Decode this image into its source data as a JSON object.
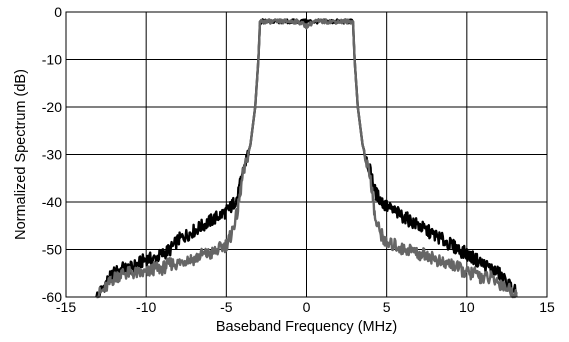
{
  "chart_data": {
    "type": "line",
    "title": "",
    "xlabel": "Baseband Frequency (MHz)",
    "ylabel": "Normalized Spectrum (dB)",
    "xlim": [
      -15,
      15
    ],
    "ylim": [
      -60,
      0
    ],
    "xticks": [
      -15,
      -10,
      -5,
      0,
      5,
      10,
      15
    ],
    "yticks": [
      0,
      -10,
      -20,
      -30,
      -40,
      -50,
      -60
    ],
    "xtick_labels": [
      "-15",
      "-10",
      "-5",
      "0",
      "5",
      "10",
      "15"
    ],
    "ytick_labels": [
      "0",
      "-10",
      "-20",
      "-30",
      "-40",
      "-50",
      "-60"
    ],
    "grid": true,
    "legend": "none",
    "series": [
      {
        "color": "#000000",
        "x": [
          -13.1,
          -12.5,
          -12.0,
          -11.5,
          -11.0,
          -10.5,
          -10.0,
          -9.5,
          -9.0,
          -8.5,
          -8.0,
          -7.5,
          -7.0,
          -6.5,
          -6.0,
          -5.5,
          -5.0,
          -4.7,
          -4.3,
          -4.0,
          -3.5,
          -3.2,
          -3.0,
          -2.9,
          -2.5,
          -2.0,
          -1.5,
          -1.0,
          -0.5,
          0.0,
          0.5,
          1.0,
          1.5,
          2.0,
          2.5,
          2.9,
          3.0,
          3.2,
          3.5,
          4.0,
          4.3,
          4.7,
          5.0,
          5.5,
          6.0,
          6.5,
          7.0,
          7.5,
          8.0,
          8.5,
          9.0,
          9.5,
          10.0,
          10.5,
          11.0,
          11.5,
          12.0,
          12.5,
          13.1
        ],
        "y": [
          -60,
          -57,
          -55,
          -54,
          -54,
          -53,
          -52,
          -52,
          -51,
          -50,
          -48,
          -47,
          -46,
          -45,
          -44,
          -43,
          -42,
          -41,
          -39,
          -34,
          -28,
          -20,
          -10,
          -2,
          -2,
          -2,
          -2,
          -2,
          -2,
          -2,
          -2,
          -2,
          -2,
          -2,
          -2,
          -2,
          -10,
          -20,
          -28,
          -34,
          -38,
          -40,
          -41,
          -42,
          -43,
          -44,
          -45,
          -46,
          -47,
          -48,
          -49,
          -50,
          -51,
          -52,
          -53,
          -54,
          -55,
          -57,
          -59
        ]
      },
      {
        "color": "#666666",
        "x": [
          -13.1,
          -12.5,
          -12.0,
          -11.5,
          -11.0,
          -10.5,
          -10.0,
          -9.5,
          -9.0,
          -8.5,
          -8.0,
          -7.5,
          -7.0,
          -6.5,
          -6.0,
          -5.5,
          -5.0,
          -4.7,
          -4.3,
          -4.0,
          -3.5,
          -3.2,
          -3.0,
          -2.9,
          -2.5,
          -2.0,
          -1.5,
          -1.0,
          -0.5,
          0.0,
          0.5,
          1.0,
          1.5,
          2.0,
          2.5,
          2.9,
          3.0,
          3.2,
          3.5,
          4.0,
          4.3,
          4.7,
          5.0,
          5.5,
          6.0,
          6.5,
          7.0,
          7.5,
          8.0,
          8.5,
          9.0,
          9.5,
          10.0,
          10.5,
          11.0,
          11.5,
          12.0,
          12.5,
          13.1
        ],
        "y": [
          -60,
          -58,
          -56,
          -55,
          -55,
          -55,
          -55,
          -54,
          -54,
          -53,
          -53,
          -52,
          -52,
          -51,
          -51,
          -50,
          -49,
          -47,
          -42,
          -35,
          -28,
          -20,
          -10,
          -2,
          -2,
          -2,
          -2,
          -2,
          -2,
          -3,
          -2,
          -2,
          -2,
          -2,
          -2,
          -2,
          -10,
          -20,
          -28,
          -35,
          -44,
          -47,
          -49,
          -49,
          -50,
          -50,
          -51,
          -51,
          -52,
          -53,
          -53,
          -54,
          -55,
          -55,
          -56,
          -56,
          -57,
          -58,
          -60
        ]
      }
    ]
  }
}
